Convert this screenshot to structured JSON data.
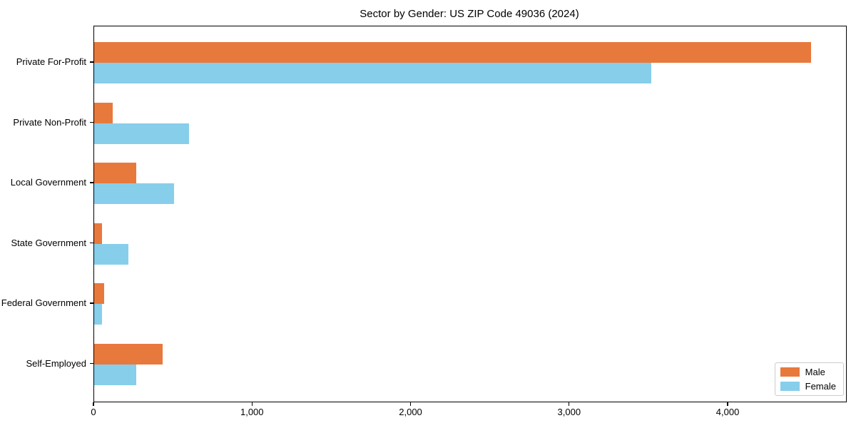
{
  "title": "Sector by Gender: US ZIP Code 49036 (2024)",
  "colors": {
    "male": "#E8793C",
    "female": "#87CEEB",
    "axis": "#000000",
    "legend_border": "#cccccc",
    "background": "#ffffff"
  },
  "legend": {
    "position": "lower right",
    "items": [
      {
        "label": "Male",
        "color": "#E8793C"
      },
      {
        "label": "Female",
        "color": "#87CEEB"
      }
    ]
  },
  "chart_data": {
    "type": "bar",
    "orientation": "horizontal",
    "title": "Sector by Gender: US ZIP Code 49036 (2024)",
    "categories": [
      "Private For-Profit",
      "Private Non-Profit",
      "Local Government",
      "State Government",
      "Federal Government",
      "Self-Employed"
    ],
    "series": [
      {
        "name": "Male",
        "color": "#E8793C",
        "values": [
          4520,
          118,
          267,
          48,
          63,
          431
        ]
      },
      {
        "name": "Female",
        "color": "#87CEEB",
        "values": [
          3515,
          598,
          505,
          215,
          48,
          267
        ]
      }
    ],
    "x_ticks": [
      0,
      1000,
      2000,
      3000,
      4000
    ],
    "x_tick_labels": [
      "0",
      "1,000",
      "2,000",
      "3,000",
      "4,000"
    ],
    "xlabel": "",
    "ylabel": "",
    "xlim": [
      0,
      4742
    ],
    "grid": false,
    "legend_position": "lower right"
  }
}
